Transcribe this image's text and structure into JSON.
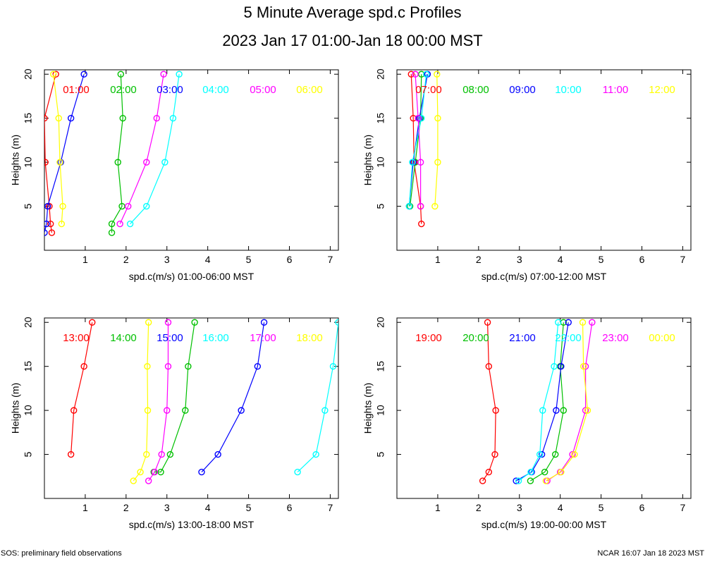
{
  "title": "5 Minute Average spd.c Profiles",
  "subtitle": "2023 Jan 17 01:00-Jan 18 00:00 MST",
  "footer_left": "SOS: preliminary field observations",
  "footer_right": "NCAR 16:07 Jan 18 2023 MST",
  "colors": {
    "red": "#ff0000",
    "green": "#00c000",
    "blue": "#0000ff",
    "cyan": "#00ffff",
    "magenta": "#ff00ff",
    "yellow": "#ffff00"
  },
  "chart_data": [
    {
      "type": "line",
      "xlabel": "spd.c(m/s) 01:00-06:00 MST",
      "ylabel": "Heights (m)",
      "xlim": [
        0,
        7.2
      ],
      "ylim": [
        0,
        20.5
      ],
      "xticks": [
        1,
        2,
        3,
        4,
        5,
        6,
        7
      ],
      "yticks": [
        5,
        10,
        15,
        20
      ],
      "series": [
        {
          "name": "01:00",
          "color": "red",
          "points": [
            [
              0.18,
              2
            ],
            [
              0.15,
              3
            ],
            [
              0.12,
              5
            ],
            [
              0.02,
              10
            ],
            [
              0.0,
              15
            ],
            [
              0.28,
              20
            ]
          ]
        },
        {
          "name": "02:00",
          "color": "green",
          "points": [
            [
              1.65,
              2
            ],
            [
              1.65,
              3
            ],
            [
              1.9,
              5
            ],
            [
              1.8,
              10
            ],
            [
              1.92,
              15
            ],
            [
              1.87,
              20
            ]
          ]
        },
        {
          "name": "03:00",
          "color": "blue",
          "points": [
            [
              0.0,
              2
            ],
            [
              0.05,
              3
            ],
            [
              0.08,
              5
            ],
            [
              0.4,
              10
            ],
            [
              0.65,
              15
            ],
            [
              0.97,
              20
            ]
          ]
        },
        {
          "name": "04:00",
          "color": "cyan",
          "points": [
            [
              2.1,
              3
            ],
            [
              2.5,
              5
            ],
            [
              2.95,
              10
            ],
            [
              3.15,
              15
            ],
            [
              3.3,
              20
            ]
          ]
        },
        {
          "name": "05:00",
          "color": "magenta",
          "points": [
            [
              1.85,
              3
            ],
            [
              2.05,
              5
            ],
            [
              2.5,
              10
            ],
            [
              2.75,
              15
            ],
            [
              2.92,
              20
            ]
          ]
        },
        {
          "name": "06:00",
          "color": "yellow",
          "points": [
            [
              0.42,
              3
            ],
            [
              0.45,
              5
            ],
            [
              0.38,
              10
            ],
            [
              0.35,
              15
            ],
            [
              0.22,
              20
            ]
          ]
        }
      ]
    },
    {
      "type": "line",
      "xlabel": "spd.c(m/s) 07:00-12:00 MST",
      "ylabel": "Heights (m)",
      "xlim": [
        0,
        7.2
      ],
      "ylim": [
        0,
        20.5
      ],
      "xticks": [
        1,
        2,
        3,
        4,
        5,
        6,
        7
      ],
      "yticks": [
        5,
        10,
        15,
        20
      ],
      "series": [
        {
          "name": "07:00",
          "color": "red",
          "points": [
            [
              0.6,
              3
            ],
            [
              0.58,
              5
            ],
            [
              0.42,
              10
            ],
            [
              0.4,
              15
            ],
            [
              0.35,
              20
            ]
          ]
        },
        {
          "name": "08:00",
          "color": "green",
          "points": [
            [
              0.32,
              5
            ],
            [
              0.45,
              10
            ],
            [
              0.58,
              15
            ],
            [
              0.6,
              20
            ]
          ]
        },
        {
          "name": "09:00",
          "color": "blue",
          "points": [
            [
              0.3,
              5
            ],
            [
              0.4,
              10
            ],
            [
              0.55,
              15
            ],
            [
              0.75,
              20
            ]
          ]
        },
        {
          "name": "10:00",
          "color": "cyan",
          "points": [
            [
              0.3,
              5
            ],
            [
              0.38,
              10
            ],
            [
              0.6,
              15
            ],
            [
              0.72,
              20
            ]
          ]
        },
        {
          "name": "11:00",
          "color": "magenta",
          "points": [
            [
              0.58,
              5
            ],
            [
              0.58,
              10
            ],
            [
              0.52,
              15
            ],
            [
              0.45,
              20
            ]
          ]
        },
        {
          "name": "12:00",
          "color": "yellow",
          "points": [
            [
              0.93,
              5
            ],
            [
              1.0,
              10
            ],
            [
              1.0,
              15
            ],
            [
              0.98,
              20
            ]
          ]
        }
      ]
    },
    {
      "type": "line",
      "xlabel": "spd.c(m/s) 13:00-18:00 MST",
      "ylabel": "Heights (m)",
      "xlim": [
        0,
        7.2
      ],
      "ylim": [
        0,
        20.5
      ],
      "xticks": [
        1,
        2,
        3,
        4,
        5,
        6,
        7
      ],
      "yticks": [
        5,
        10,
        15,
        20
      ],
      "series": [
        {
          "name": "13:00",
          "color": "red",
          "points": [
            [
              0.65,
              5
            ],
            [
              0.72,
              10
            ],
            [
              0.97,
              15
            ],
            [
              1.17,
              20
            ]
          ]
        },
        {
          "name": "14:00",
          "color": "green",
          "points": [
            [
              2.68,
              3
            ],
            [
              2.85,
              3
            ],
            [
              3.08,
              5
            ],
            [
              3.45,
              10
            ],
            [
              3.52,
              15
            ],
            [
              3.68,
              20
            ]
          ]
        },
        {
          "name": "15:00",
          "color": "blue",
          "points": [
            [
              3.85,
              3
            ],
            [
              4.25,
              5
            ],
            [
              4.82,
              10
            ],
            [
              5.22,
              15
            ],
            [
              5.38,
              20
            ]
          ]
        },
        {
          "name": "16:00",
          "color": "cyan",
          "points": [
            [
              6.2,
              3
            ],
            [
              6.65,
              5
            ],
            [
              6.87,
              10
            ],
            [
              7.07,
              15
            ],
            [
              7.2,
              20
            ]
          ]
        },
        {
          "name": "17:00",
          "color": "magenta",
          "points": [
            [
              2.55,
              2
            ],
            [
              2.7,
              3
            ],
            [
              2.87,
              5
            ],
            [
              3.0,
              10
            ],
            [
              3.03,
              15
            ],
            [
              3.03,
              20
            ]
          ]
        },
        {
          "name": "18:00",
          "color": "yellow",
          "points": [
            [
              2.18,
              2
            ],
            [
              2.35,
              3
            ],
            [
              2.5,
              5
            ],
            [
              2.53,
              10
            ],
            [
              2.52,
              15
            ],
            [
              2.55,
              20
            ]
          ]
        }
      ]
    },
    {
      "type": "line",
      "xlabel": "spd.c(m/s) 19:00-00:00 MST",
      "ylabel": "Heights (m)",
      "xlim": [
        0,
        7.2
      ],
      "ylim": [
        0,
        20.5
      ],
      "xticks": [
        1,
        2,
        3,
        4,
        5,
        6,
        7
      ],
      "yticks": [
        5,
        10,
        15,
        20
      ],
      "series": [
        {
          "name": "19:00",
          "color": "red",
          "points": [
            [
              2.1,
              2
            ],
            [
              2.25,
              3
            ],
            [
              2.4,
              5
            ],
            [
              2.42,
              10
            ],
            [
              2.25,
              15
            ],
            [
              2.22,
              20
            ]
          ]
        },
        {
          "name": "20:00",
          "color": "green",
          "points": [
            [
              3.27,
              2
            ],
            [
              3.62,
              3
            ],
            [
              3.88,
              5
            ],
            [
              4.08,
              10
            ],
            [
              4.0,
              15
            ],
            [
              4.08,
              20
            ]
          ]
        },
        {
          "name": "21:00",
          "color": "blue",
          "points": [
            [
              2.92,
              2
            ],
            [
              3.3,
              3
            ],
            [
              3.55,
              5
            ],
            [
              3.9,
              10
            ],
            [
              4.02,
              15
            ],
            [
              4.2,
              20
            ]
          ]
        },
        {
          "name": "22:00",
          "color": "cyan",
          "points": [
            [
              2.98,
              2
            ],
            [
              3.28,
              3
            ],
            [
              3.5,
              5
            ],
            [
              3.57,
              10
            ],
            [
              3.85,
              15
            ],
            [
              3.95,
              20
            ]
          ]
        },
        {
          "name": "23:00",
          "color": "magenta",
          "points": [
            [
              3.68,
              2
            ],
            [
              4.0,
              3
            ],
            [
              4.3,
              5
            ],
            [
              4.62,
              10
            ],
            [
              4.62,
              15
            ],
            [
              4.78,
              20
            ]
          ]
        },
        {
          "name": "00:00",
          "color": "yellow",
          "points": [
            [
              3.65,
              2
            ],
            [
              4.02,
              3
            ],
            [
              4.35,
              5
            ],
            [
              4.67,
              10
            ],
            [
              4.57,
              15
            ],
            [
              4.55,
              20
            ]
          ]
        }
      ]
    }
  ]
}
